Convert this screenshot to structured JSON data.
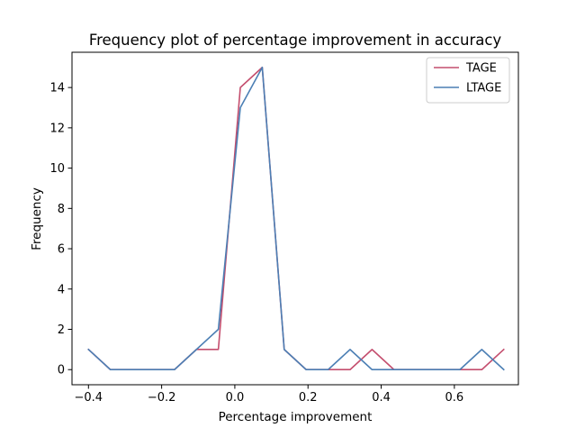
{
  "chart_data": {
    "type": "line",
    "title": "Frequency plot of percentage improvement in accuracy",
    "xlabel": "Percentage improvement",
    "ylabel": "Frequency",
    "xlim": [
      -0.445,
      0.775
    ],
    "ylim": [
      -0.75,
      15.75
    ],
    "xticks": [
      -0.4,
      -0.2,
      0.0,
      0.2,
      0.4,
      0.6
    ],
    "xtick_labels": [
      "−0.4",
      "−0.2",
      "0.0",
      "0.2",
      "0.4",
      "0.6"
    ],
    "yticks": [
      0,
      2,
      4,
      6,
      8,
      10,
      12,
      14
    ],
    "ytick_labels": [
      "0",
      "2",
      "4",
      "6",
      "8",
      "10",
      "12",
      "14"
    ],
    "grid": false,
    "legend_position": "top-right",
    "x": [
      -0.4,
      -0.34,
      -0.28,
      -0.22,
      -0.165,
      -0.105,
      -0.045,
      0.015,
      0.075,
      0.135,
      0.195,
      0.255,
      0.315,
      0.375,
      0.435,
      0.495,
      0.555,
      0.615,
      0.675,
      0.735
    ],
    "series": [
      {
        "name": "TAGE",
        "color": "#c44e6e",
        "values": [
          1,
          0,
          0,
          0,
          0,
          1,
          1,
          14,
          15,
          1,
          0,
          0,
          0,
          1,
          0,
          0,
          0,
          0,
          0,
          1
        ]
      },
      {
        "name": "LTAGE",
        "color": "#4c7fb4",
        "values": [
          1,
          0,
          0,
          0,
          0,
          1,
          2,
          13,
          15,
          1,
          0,
          0,
          1,
          0,
          0,
          0,
          0,
          0,
          1,
          0
        ]
      }
    ]
  }
}
